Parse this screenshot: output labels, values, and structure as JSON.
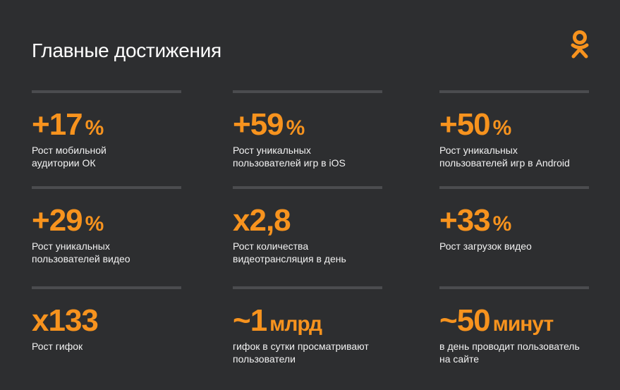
{
  "title": "Главные достижения",
  "tiles": [
    {
      "value": "+17",
      "unit": "%",
      "lines": [
        "Рост мобильной",
        "аудитории ОК"
      ]
    },
    {
      "value": "+59",
      "unit": "%",
      "lines": [
        "Рост уникальных",
        "пользователей игр в iOS"
      ]
    },
    {
      "value": "+50",
      "unit": "%",
      "lines": [
        "Рост уникальных",
        "пользователей игр в Android"
      ]
    },
    {
      "value": "+29",
      "unit": "%",
      "lines": [
        "Рост уникальных",
        "пользователей видео"
      ]
    },
    {
      "value": "x2,8",
      "lines": [
        "Рост количества",
        "видеотрансляция в день"
      ]
    },
    {
      "value": "+33",
      "unit": "%",
      "lines": [
        "Рост загрузок видео"
      ]
    },
    {
      "value": "x133",
      "lines": [
        "Рост гифок"
      ]
    },
    {
      "value": "~1",
      "unit": "млрд",
      "lines": [
        "гифок в сутки просматривают",
        "пользователи"
      ]
    },
    {
      "value": "~50",
      "unit": "минут",
      "lines": [
        "в день проводит пользователь",
        "на сайте"
      ]
    }
  ]
}
